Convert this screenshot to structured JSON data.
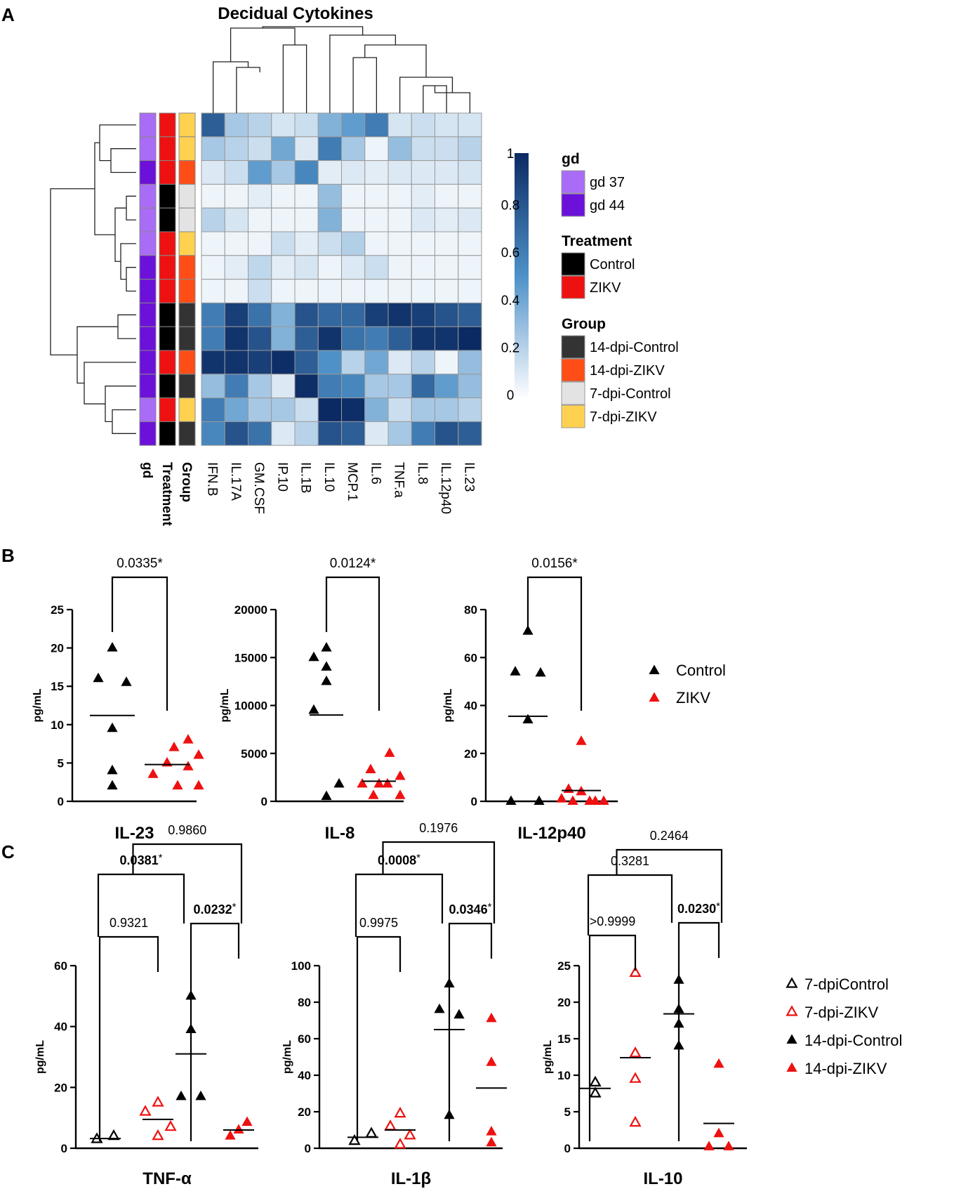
{
  "panel_labels": [
    "A",
    "B",
    "C"
  ],
  "chart_data": [
    {
      "type": "heatmap",
      "panel": "A",
      "title": "Decidual Cytokines",
      "columns": [
        "IFN.B",
        "IL.17A",
        "GM.CSF",
        "IP.10",
        "IL.1B",
        "IL.10",
        "MCP.1",
        "IL.6",
        "TNF.a",
        "IL.8",
        "IL.12p40",
        "IL.23"
      ],
      "row_annotation_labels": [
        "gd",
        "Treatment",
        "Group"
      ],
      "rows": [
        {
          "gd": "gd 37",
          "treatment": "ZIKV",
          "group": "7-dpi-ZIKV",
          "values": [
            0.75,
            0.25,
            0.2,
            0.12,
            0.15,
            0.35,
            0.45,
            0.6,
            0.12,
            0.15,
            0.12,
            0.12
          ]
        },
        {
          "gd": "gd 37",
          "treatment": "ZIKV",
          "group": "7-dpi-ZIKV",
          "values": [
            0.25,
            0.2,
            0.15,
            0.4,
            0.1,
            0.6,
            0.25,
            0.05,
            0.3,
            0.15,
            0.15,
            0.2
          ]
        },
        {
          "gd": "gd 44",
          "treatment": "ZIKV",
          "group": "14-dpi-ZIKV",
          "values": [
            0.1,
            0.15,
            0.45,
            0.25,
            0.55,
            0.08,
            0.1,
            0.08,
            0.1,
            0.1,
            0.1,
            0.12
          ]
        },
        {
          "gd": "gd 37",
          "treatment": "Control",
          "group": "7-dpi-Control",
          "values": [
            0.05,
            0.05,
            0.08,
            0.05,
            0.05,
            0.3,
            0.05,
            0.05,
            0.05,
            0.08,
            0.05,
            0.05
          ]
        },
        {
          "gd": "gd 37",
          "treatment": "Control",
          "group": "7-dpi-Control",
          "values": [
            0.2,
            0.12,
            0.05,
            0.05,
            0.05,
            0.35,
            0.05,
            0.05,
            0.05,
            0.1,
            0.08,
            0.1
          ]
        },
        {
          "gd": "gd 37",
          "treatment": "ZIKV",
          "group": "7-dpi-ZIKV",
          "values": [
            0.05,
            0.05,
            0.05,
            0.15,
            0.08,
            0.15,
            0.22,
            0.05,
            0.05,
            0.05,
            0.05,
            0.05
          ]
        },
        {
          "gd": "gd 44",
          "treatment": "ZIKV",
          "group": "14-dpi-ZIKV",
          "values": [
            0.05,
            0.08,
            0.18,
            0.08,
            0.12,
            0.05,
            0.1,
            0.15,
            0.05,
            0.05,
            0.05,
            0.05
          ]
        },
        {
          "gd": "gd 44",
          "treatment": "ZIKV",
          "group": "14-dpi-ZIKV",
          "values": [
            0.05,
            0.05,
            0.15,
            0.05,
            0.05,
            0.05,
            0.05,
            0.05,
            0.05,
            0.05,
            0.05,
            0.05
          ]
        },
        {
          "gd": "gd 44",
          "treatment": "Control",
          "group": "14-dpi-Control",
          "values": [
            0.6,
            0.9,
            0.65,
            0.35,
            0.8,
            0.7,
            0.7,
            0.9,
            0.95,
            0.9,
            0.8,
            0.75
          ]
        },
        {
          "gd": "gd 44",
          "treatment": "Control",
          "group": "14-dpi-Control",
          "values": [
            0.6,
            0.95,
            0.8,
            0.35,
            0.75,
            0.95,
            0.65,
            0.6,
            0.75,
            0.95,
            0.95,
            1.0
          ]
        },
        {
          "gd": "gd 44",
          "treatment": "ZIKV",
          "group": "14-dpi-ZIKV",
          "values": [
            0.95,
            0.95,
            0.9,
            0.98,
            0.75,
            0.5,
            0.2,
            0.4,
            0.1,
            0.2,
            0.05,
            0.3
          ]
        },
        {
          "gd": "gd 44",
          "treatment": "Control",
          "group": "14-dpi-Control",
          "values": [
            0.3,
            0.6,
            0.25,
            0.1,
            0.98,
            0.6,
            0.55,
            0.25,
            0.25,
            0.7,
            0.45,
            0.3
          ]
        },
        {
          "gd": "gd 37",
          "treatment": "ZIKV",
          "group": "7-dpi-ZIKV",
          "values": [
            0.6,
            0.4,
            0.25,
            0.25,
            0.15,
            1.0,
            0.98,
            0.35,
            0.15,
            0.25,
            0.25,
            0.2
          ]
        },
        {
          "gd": "gd 44",
          "treatment": "Control",
          "group": "14-dpi-Control",
          "values": [
            0.55,
            0.8,
            0.65,
            0.1,
            0.2,
            0.8,
            0.75,
            0.1,
            0.25,
            0.6,
            0.8,
            0.75
          ]
        }
      ],
      "colorbar": {
        "min": 0,
        "max": 1,
        "ticks": [
          "1",
          "0.8",
          "0.6",
          "0.4",
          "0.2",
          "0"
        ],
        "low_color": "#ffffff",
        "high_color": "#0b2a63"
      },
      "legend": {
        "gd": {
          "title": "gd",
          "items": [
            {
              "label": "gd 37",
              "color": "#a96cf6"
            },
            {
              "label": "gd 44",
              "color": "#6c11d9"
            }
          ]
        },
        "treatment": {
          "title": "Treatment",
          "items": [
            {
              "label": "Control",
              "color": "#000000"
            },
            {
              "label": "ZIKV",
              "color": "#ee1111"
            }
          ]
        },
        "group": {
          "title": "Group",
          "items": [
            {
              "label": "14-dpi-Control",
              "color": "#333333"
            },
            {
              "label": "14-dpi-ZIKV",
              "color": "#ff4d17"
            },
            {
              "label": "7-dpi-Control",
              "color": "#e3e3e3"
            },
            {
              "label": "7-dpi-ZIKV",
              "color": "#ffd150"
            }
          ]
        }
      }
    },
    {
      "type": "scatter",
      "panel": "B",
      "title": "IL-23",
      "ylabel": "pg/mL",
      "ylim": [
        0,
        25
      ],
      "yticks": [
        "0",
        "5",
        "10",
        "15",
        "20",
        "25"
      ],
      "groups": [
        "Control",
        "ZIKV"
      ],
      "series": [
        {
          "name": "Control",
          "values": [
            20,
            16,
            15.5,
            9.5,
            4,
            2
          ],
          "mean": 11.2
        },
        {
          "name": "ZIKV",
          "values": [
            8,
            7,
            6,
            5,
            4.5,
            3.5,
            2,
            2
          ],
          "mean": 4.8
        }
      ],
      "comparisons": [
        {
          "label": "0.0335*",
          "from": "Control",
          "to": "ZIKV"
        }
      ]
    },
    {
      "type": "scatter",
      "panel": "B",
      "title": "IL-8",
      "ylabel": "pg/mL",
      "ylim": [
        0,
        20000
      ],
      "yticks": [
        "0",
        "5000",
        "10000",
        "15000",
        "20000"
      ],
      "groups": [
        "Control",
        "ZIKV"
      ],
      "series": [
        {
          "name": "Control",
          "values": [
            16000,
            15000,
            14000,
            12500,
            9500,
            1800,
            500
          ],
          "mean": 9000
        },
        {
          "name": "ZIKV",
          "values": [
            5000,
            3300,
            2600,
            1800,
            1800,
            1800,
            600,
            600
          ],
          "mean": 2100
        }
      ],
      "comparisons": [
        {
          "label": "0.0124*",
          "from": "Control",
          "to": "ZIKV"
        }
      ]
    },
    {
      "type": "scatter",
      "panel": "B",
      "title": "IL-12p40",
      "ylabel": "pg/mL",
      "ylim": [
        0,
        80
      ],
      "yticks": [
        "0",
        "20",
        "40",
        "60",
        "80"
      ],
      "groups": [
        "Control",
        "ZIKV"
      ],
      "series": [
        {
          "name": "Control",
          "values": [
            71,
            54,
            53.5,
            34,
            0,
            0
          ],
          "mean": 35.5
        },
        {
          "name": "ZIKV",
          "values": [
            25,
            5,
            4,
            1,
            0,
            0,
            0,
            0
          ],
          "mean": 4.5
        }
      ],
      "comparisons": [
        {
          "label": "0.0156*",
          "from": "Control",
          "to": "ZIKV"
        }
      ]
    },
    {
      "type": "scatter",
      "panel": "C",
      "title": "TNF-α",
      "ylabel": "pg/mL",
      "ylim": [
        0,
        60
      ],
      "yticks": [
        "0",
        "20",
        "40",
        "60"
      ],
      "groups": [
        "7-dpiControl",
        "7-dpi-ZIKV",
        "14-dpi-Control",
        "14-dpi-ZIKV"
      ],
      "series": [
        {
          "name": "7-dpiControl",
          "values": [
            3,
            4
          ],
          "mean": 3.2
        },
        {
          "name": "7-dpi-ZIKV",
          "values": [
            15,
            12,
            7,
            4
          ],
          "mean": 9.5
        },
        {
          "name": "14-dpi-Control",
          "values": [
            50,
            39,
            17,
            17
          ],
          "mean": 31
        },
        {
          "name": "14-dpi-ZIKV",
          "values": [
            8.5,
            6,
            4
          ],
          "mean": 6
        }
      ],
      "comparisons": [
        {
          "label": "0.9321",
          "bold": false,
          "from": 0,
          "to": 1,
          "level": 0
        },
        {
          "label": "0.0232",
          "suffix": "*",
          "bold": true,
          "from": 2,
          "to": 3,
          "level": 0
        },
        {
          "label": "0.0381",
          "suffix": "*",
          "bold": true,
          "from": 0,
          "to": 2,
          "level": 1
        },
        {
          "label": "0.9860",
          "bold": false,
          "from": 1,
          "to": 3,
          "level": 2
        }
      ]
    },
    {
      "type": "scatter",
      "panel": "C",
      "title": "IL-1β",
      "ylabel": "pg/mL",
      "ylim": [
        0,
        100
      ],
      "yticks": [
        "0",
        "20",
        "40",
        "60",
        "80",
        "100"
      ],
      "groups": [
        "7-dpiControl",
        "7-dpi-ZIKV",
        "14-dpi-Control",
        "14-dpi-ZIKV"
      ],
      "series": [
        {
          "name": "7-dpiControl",
          "values": [
            4,
            8
          ],
          "mean": 6
        },
        {
          "name": "7-dpi-ZIKV",
          "values": [
            19,
            12,
            7,
            2
          ],
          "mean": 10
        },
        {
          "name": "14-dpi-Control",
          "values": [
            90,
            76,
            73,
            18
          ],
          "mean": 65
        },
        {
          "name": "14-dpi-ZIKV",
          "values": [
            71,
            47,
            9,
            3
          ],
          "mean": 33
        }
      ],
      "comparisons": [
        {
          "label": "0.9975",
          "bold": false,
          "from": 0,
          "to": 1,
          "level": 0
        },
        {
          "label": "0.0346",
          "suffix": "*",
          "bold": true,
          "from": 2,
          "to": 3,
          "level": 0
        },
        {
          "label": "0.0008",
          "suffix": "*",
          "bold": true,
          "from": 0,
          "to": 2,
          "level": 1
        },
        {
          "label": "0.1976",
          "bold": false,
          "from": 1,
          "to": 3,
          "level": 2
        }
      ]
    },
    {
      "type": "scatter",
      "panel": "C",
      "title": "IL-10",
      "ylabel": "pg/mL",
      "ylim": [
        0,
        25
      ],
      "yticks": [
        "0",
        "5",
        "10",
        "15",
        "20",
        "25"
      ],
      "groups": [
        "7-dpiControl",
        "7-dpi-ZIKV",
        "14-dpi-Control",
        "14-dpi-ZIKV"
      ],
      "series": [
        {
          "name": "7-dpiControl",
          "values": [
            9,
            7.5
          ],
          "mean": 8.2
        },
        {
          "name": "7-dpi-ZIKV",
          "values": [
            24,
            13,
            9.5,
            3.5
          ],
          "mean": 12.4
        },
        {
          "name": "14-dpi-Control",
          "values": [
            23,
            19,
            17,
            14
          ],
          "mean": 18.4
        },
        {
          "name": "14-dpi-ZIKV",
          "values": [
            11.5,
            2,
            0.2,
            0.2
          ],
          "mean": 3.4
        }
      ],
      "comparisons": [
        {
          "label": ">0.9999",
          "bold": false,
          "from": 0,
          "to": 1,
          "level": 0
        },
        {
          "label": "0.0230",
          "suffix": "*",
          "bold": true,
          "from": 2,
          "to": 3,
          "level": 0
        },
        {
          "label": "0.3281",
          "bold": false,
          "from": 0,
          "to": 2,
          "level": 1
        },
        {
          "label": "0.2464",
          "bold": false,
          "from": 1,
          "to": 3,
          "level": 2
        }
      ]
    }
  ],
  "legend_b": [
    {
      "label": "Control",
      "color": "#000000",
      "filled": true
    },
    {
      "label": "ZIKV",
      "color": "#ee1111",
      "filled": true
    }
  ],
  "legend_c": [
    {
      "label": "7-dpiControl",
      "color": "#000000",
      "filled": false
    },
    {
      "label": "7-dpi-ZIKV",
      "color": "#ee1111",
      "filled": false
    },
    {
      "label": "14-dpi-Control",
      "color": "#000000",
      "filled": true
    },
    {
      "label": "14-dpi-ZIKV",
      "color": "#ee1111",
      "filled": true
    }
  ]
}
